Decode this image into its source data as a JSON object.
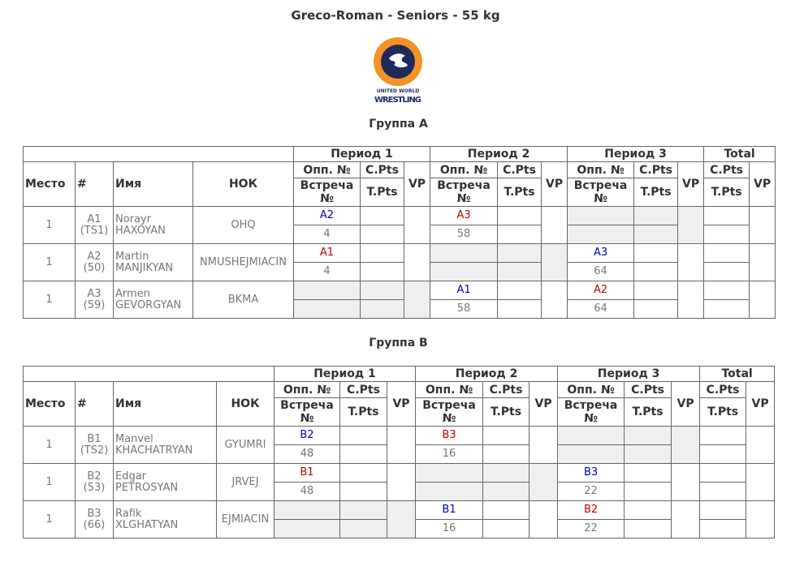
{
  "title": "Greco-Roman - Seniors - 55 kg",
  "logo_text": "UNITED WORLD WRESTLING",
  "colors": {
    "blue": "#0000c0",
    "red": "#c00000",
    "empty": "#efefef"
  },
  "headers": {
    "place": "Место",
    "num": "#",
    "name": "Имя",
    "nok": "НОК",
    "periods": [
      "Период 1",
      "Период 2",
      "Период 3"
    ],
    "total": "Total",
    "opp": "Опп. №",
    "bout": "Встреча №",
    "cpts": "C.Pts",
    "tpts": "T.Pts",
    "vp": "VP"
  },
  "groups": [
    {
      "title": "Группа A",
      "fighters": [
        {
          "place": "1",
          "num": "A1",
          "seed": "(TS1)",
          "first": "Norayr",
          "last": "HAXOYAN",
          "nok": "OHQ",
          "periods": [
            {
              "opp": "A2",
              "color": "blue",
              "bout": "4"
            },
            {
              "opp": "A3",
              "color": "red",
              "bout": "58"
            },
            null
          ]
        },
        {
          "place": "1",
          "num": "A2",
          "seed": "(50)",
          "first": "Martin",
          "last": "MANJIKYAN",
          "nok": "NMUSHEJMIACIN",
          "periods": [
            {
              "opp": "A1",
              "color": "red",
              "bout": "4"
            },
            null,
            {
              "opp": "A3",
              "color": "blue",
              "bout": "64"
            }
          ]
        },
        {
          "place": "1",
          "num": "A3",
          "seed": "(59)",
          "first": "Armen",
          "last": "GEVORGYAN",
          "nok": "BKMA",
          "periods": [
            null,
            {
              "opp": "A1",
              "color": "blue",
              "bout": "58"
            },
            {
              "opp": "A2",
              "color": "red",
              "bout": "64"
            }
          ]
        }
      ]
    },
    {
      "title": "Группа B",
      "fighters": [
        {
          "place": "1",
          "num": "B1",
          "seed": "(TS2)",
          "first": "Manvel",
          "last": "KHACHATRYAN",
          "nok": "GYUMRI",
          "periods": [
            {
              "opp": "B2",
              "color": "blue",
              "bout": "48"
            },
            {
              "opp": "B3",
              "color": "red",
              "bout": "16"
            },
            null
          ]
        },
        {
          "place": "1",
          "num": "B2",
          "seed": "(53)",
          "first": "Edgar",
          "last": "PETROSYAN",
          "nok": "JRVEJ",
          "periods": [
            {
              "opp": "B1",
              "color": "red",
              "bout": "48"
            },
            null,
            {
              "opp": "B3",
              "color": "blue",
              "bout": "22"
            }
          ]
        },
        {
          "place": "1",
          "num": "B3",
          "seed": "(66)",
          "first": "Rafik",
          "last": "XLGHATYAN",
          "nok": "EJMIACIN",
          "periods": [
            null,
            {
              "opp": "B1",
              "color": "blue",
              "bout": "16"
            },
            {
              "opp": "B2",
              "color": "red",
              "bout": "22"
            }
          ]
        }
      ]
    }
  ]
}
